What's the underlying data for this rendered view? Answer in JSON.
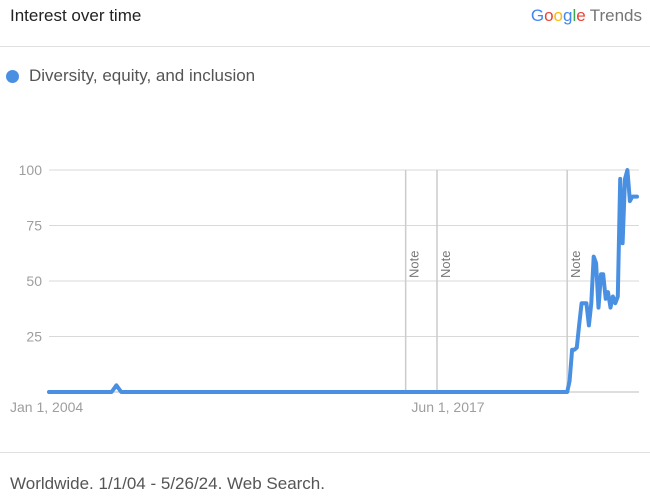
{
  "header": {
    "title": "Interest over time",
    "brand_letters": [
      "G",
      "o",
      "o",
      "g",
      "l",
      "e"
    ],
    "brand_suffix": "Trends"
  },
  "colors": {
    "series": "#4a90e2",
    "grid": "#d9d9d9",
    "axis_text": "#9e9e9e"
  },
  "chart_data": {
    "type": "line",
    "xlim": [
      "2004-01-01",
      "2024-05-26"
    ],
    "ylim": [
      0,
      100
    ],
    "y_ticks": [
      25,
      50,
      75,
      100
    ],
    "x_ticks": [
      {
        "date": "2004-01-01",
        "label": "Jan 1, 2004"
      },
      {
        "date": "2017-06-01",
        "label": "Jun 1, 2017"
      }
    ],
    "notes": [
      {
        "date": "2016-05-01",
        "label": "Note"
      },
      {
        "date": "2017-06-01",
        "label": "Note"
      },
      {
        "date": "2021-12-01",
        "label": "Note"
      }
    ],
    "series": [
      {
        "name": "Diversity, equity, and inclusion",
        "points": [
          [
            "2004-01-01",
            0
          ],
          [
            "2006-03-01",
            0
          ],
          [
            "2006-05-01",
            3
          ],
          [
            "2006-07-01",
            0
          ],
          [
            "2021-12-01",
            0
          ],
          [
            "2022-01-01",
            5
          ],
          [
            "2022-02-01",
            19
          ],
          [
            "2022-03-01",
            19
          ],
          [
            "2022-04-01",
            20
          ],
          [
            "2022-05-01",
            30
          ],
          [
            "2022-06-01",
            40
          ],
          [
            "2022-07-01",
            40
          ],
          [
            "2022-08-01",
            40
          ],
          [
            "2022-09-01",
            30
          ],
          [
            "2022-10-01",
            40
          ],
          [
            "2022-11-01",
            61
          ],
          [
            "2022-12-01",
            58
          ],
          [
            "2023-01-01",
            38
          ],
          [
            "2023-02-01",
            53
          ],
          [
            "2023-03-01",
            53
          ],
          [
            "2023-04-01",
            42
          ],
          [
            "2023-05-01",
            45
          ],
          [
            "2023-06-01",
            38
          ],
          [
            "2023-07-01",
            43
          ],
          [
            "2023-08-01",
            40
          ],
          [
            "2023-09-01",
            43
          ],
          [
            "2023-10-01",
            96
          ],
          [
            "2023-11-01",
            67
          ],
          [
            "2023-12-01",
            96
          ],
          [
            "2024-01-01",
            100
          ],
          [
            "2024-02-01",
            86
          ],
          [
            "2024-03-01",
            88
          ],
          [
            "2024-04-01",
            88
          ],
          [
            "2024-05-01",
            88
          ]
        ]
      }
    ]
  },
  "footer": {
    "text": "Worldwide. 1/1/04 - 5/26/24. Web Search."
  }
}
